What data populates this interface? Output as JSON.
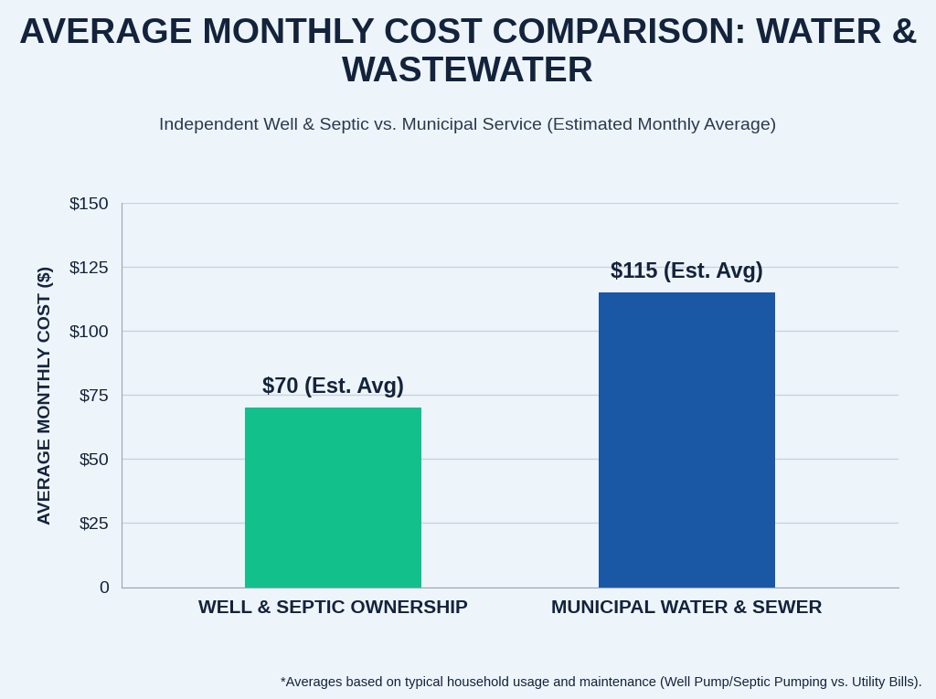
{
  "chart_data": {
    "type": "bar",
    "title": "AVERAGE MONTHLY COST COMPARISON: WATER & WASTEWATER",
    "subtitle": "Independent Well & Septic vs. Municipal Service (Estimated Monthly Average)",
    "y_label": "AVERAGE MONTHLY COST ($)",
    "categories": [
      "WELL & SEPTIC OWNERSHIP",
      "MUNICIPAL WATER & SEWER"
    ],
    "values": [
      70,
      115
    ],
    "value_labels": [
      "$70 (Est. Avg)",
      "$115 (Est. Avg)"
    ],
    "colors": [
      "#12c08c",
      "#1a58a6"
    ],
    "ylim": [
      0,
      150
    ],
    "yticks": [
      0,
      {
        "value": 25,
        "label": "$25"
      },
      {
        "value": 50,
        "label": "$50"
      },
      {
        "value": 75,
        "label": "$75"
      },
      {
        "value": 100,
        "label": "$100"
      },
      {
        "value": 125,
        "label": "$125"
      },
      {
        "value": 150,
        "label": "$150"
      }
    ],
    "grid": true,
    "data_labels": true,
    "footnote": "*Averages based on typical household usage and maintenance (Well Pump/Septic Pumping vs. Utility Bills)."
  }
}
